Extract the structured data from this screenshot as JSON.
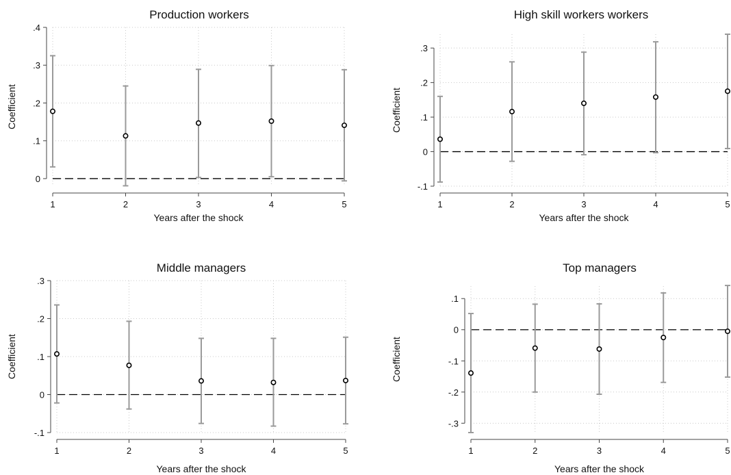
{
  "chart_data": [
    {
      "type": "scatter",
      "title": "Production workers",
      "xlabel": "Years after the shock",
      "ylabel": "Coefficient",
      "x": [
        1,
        2,
        3,
        4,
        5
      ],
      "xlim": [
        1,
        5
      ],
      "ylim": [
        -0.02,
        0.4
      ],
      "y_ticks": [
        0,
        0.1,
        0.2,
        0.3,
        0.4
      ],
      "y_tick_labels": [
        "0",
        ".1",
        ".2",
        ".3",
        ".4"
      ],
      "x_tick_labels": [
        "1",
        "2",
        "3",
        "4",
        "5"
      ],
      "points": [
        0.178,
        0.113,
        0.147,
        0.152,
        0.141
      ],
      "ci_low": [
        0.031,
        -0.019,
        0.003,
        0.005,
        -0.006
      ],
      "ci_high": [
        0.325,
        0.245,
        0.289,
        0.299,
        0.288
      ],
      "reference_line": 0,
      "grid": true
    },
    {
      "type": "scatter",
      "title": "High skill workers workers",
      "xlabel": "Years after the shock",
      "ylabel": "Coefficient",
      "x": [
        1,
        2,
        3,
        4,
        5
      ],
      "xlim": [
        1,
        5
      ],
      "ylim": [
        -0.1,
        0.34
      ],
      "y_ticks": [
        -0.1,
        0,
        0.1,
        0.2,
        0.3
      ],
      "y_tick_labels": [
        "-.1",
        "0",
        ".1",
        ".2",
        ".3"
      ],
      "x_tick_labels": [
        "1",
        "2",
        "3",
        "4",
        "5"
      ],
      "points": [
        0.036,
        0.116,
        0.14,
        0.158,
        0.175
      ],
      "ci_low": [
        -0.088,
        -0.028,
        -0.009,
        -0.003,
        0.009
      ],
      "ci_high": [
        0.16,
        0.26,
        0.288,
        0.318,
        0.34
      ],
      "reference_line": 0,
      "grid": true
    },
    {
      "type": "scatter",
      "title": "Middle managers",
      "xlabel": "Years after the shock",
      "ylabel": "Coefficient",
      "x": [
        1,
        2,
        3,
        4,
        5
      ],
      "xlim": [
        1,
        5
      ],
      "ylim": [
        -0.1,
        0.3
      ],
      "y_ticks": [
        -0.1,
        0,
        0.1,
        0.2,
        0.3
      ],
      "y_tick_labels": [
        "-.1",
        "0",
        ".1",
        ".2",
        ".3"
      ],
      "x_tick_labels": [
        "1",
        "2",
        "3",
        "4",
        "5"
      ],
      "points": [
        0.107,
        0.077,
        0.036,
        0.032,
        0.037
      ],
      "ci_low": [
        -0.022,
        -0.038,
        -0.076,
        -0.083,
        -0.077
      ],
      "ci_high": [
        0.236,
        0.193,
        0.148,
        0.148,
        0.151
      ],
      "reference_line": 0,
      "grid": true
    },
    {
      "type": "scatter",
      "title": "Top managers",
      "xlabel": "Years after the shock",
      "ylabel": "Coefficient",
      "x": [
        1,
        2,
        3,
        4,
        5
      ],
      "xlim": [
        1,
        5
      ],
      "ylim": [
        -0.33,
        0.14
      ],
      "y_ticks": [
        -0.3,
        -0.2,
        -0.1,
        0,
        0.1
      ],
      "y_tick_labels": [
        "-.3",
        "-.2",
        "-.1",
        "0",
        ".1"
      ],
      "x_tick_labels": [
        "1",
        "2",
        "3",
        "4",
        "5"
      ],
      "points": [
        -0.139,
        -0.059,
        -0.062,
        -0.025,
        -0.005
      ],
      "ci_low": [
        -0.33,
        -0.2,
        -0.207,
        -0.169,
        -0.152
      ],
      "ci_high": [
        0.052,
        0.082,
        0.083,
        0.118,
        0.142
      ],
      "reference_line": 0,
      "grid": true
    }
  ],
  "colors": {
    "ci_bar": "#9a9a9a",
    "grid": "#c8c8c8",
    "axis": "#444444",
    "point_stroke": "#000000",
    "reference_line": "#000000"
  }
}
